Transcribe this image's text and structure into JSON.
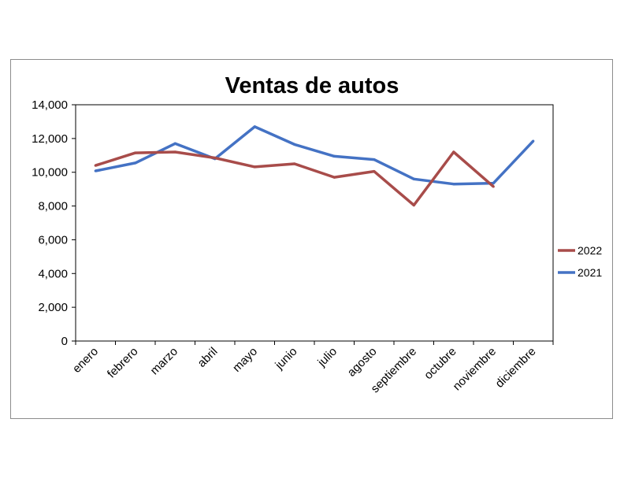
{
  "chart_data": {
    "type": "line",
    "title": "Ventas de autos",
    "xlabel": "",
    "ylabel": "",
    "categories": [
      "enero",
      "febrero",
      "marzo",
      "abril",
      "mayo",
      "junio",
      "julio",
      "agosto",
      "septiembre",
      "octubre",
      "noviembre",
      "diciembre"
    ],
    "y_ticks": [
      "0",
      "2,000",
      "4,000",
      "6,000",
      "8,000",
      "10,000",
      "12,000",
      "14,000"
    ],
    "ylim": [
      0,
      14000
    ],
    "grid": false,
    "legend_position": "right",
    "series": [
      {
        "name": "2022",
        "color": "#a84c4a",
        "values": [
          10400,
          11150,
          11200,
          10850,
          10320,
          10500,
          9700,
          10050,
          8050,
          11200,
          9150,
          null
        ]
      },
      {
        "name": "2021",
        "color": "#4472c4",
        "values": [
          10080,
          10550,
          11700,
          10800,
          12700,
          11650,
          10950,
          10750,
          9600,
          9300,
          9350,
          11850
        ]
      }
    ]
  }
}
